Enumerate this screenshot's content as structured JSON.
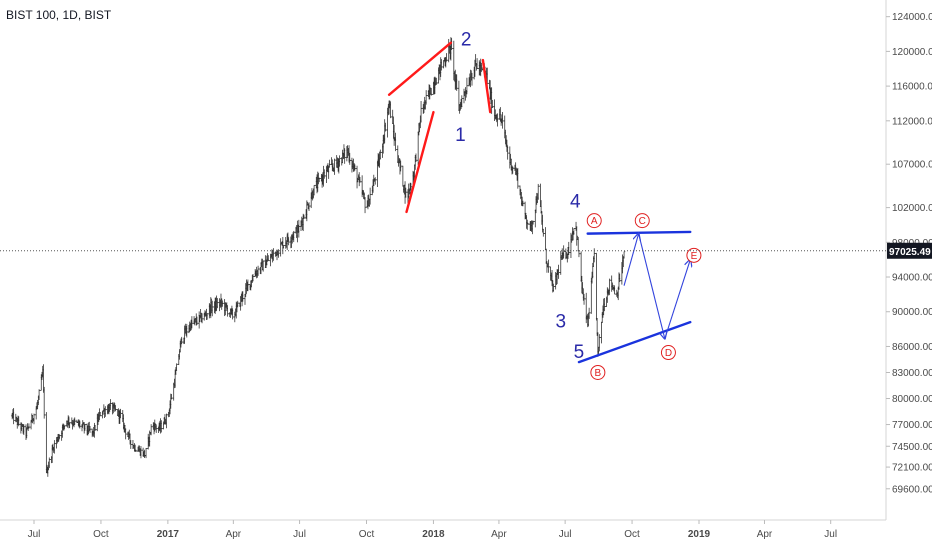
{
  "header": {
    "title": "BIST 100, 1D, BIST"
  },
  "chart_data": {
    "type": "candlestick",
    "title": "BIST 100, 1D, BIST",
    "timeframe": "1D",
    "grid": false,
    "price_axis_position": "right",
    "ylim": [
      67500,
      125000
    ],
    "y_ticks": [
      "124000.00",
      "120000.00",
      "116000.00",
      "112000.00",
      "107000.00",
      "102000.00",
      "98000.00",
      "94000.00",
      "90000.00",
      "86000.00",
      "83000.00",
      "80000.00",
      "77000.00",
      "74500.00",
      "72100.00",
      "69600.00"
    ],
    "x_ticks": [
      "Jul",
      "Oct",
      "2017",
      "Apr",
      "Jul",
      "Oct",
      "2018",
      "Apr",
      "Jul",
      "Oct",
      "2019",
      "Apr",
      "Jul"
    ],
    "last_price": 97025.49,
    "last_price_label": "97025.49",
    "price_path": [
      [
        "2016-06-01",
        78000
      ],
      [
        "2016-06-20",
        76000
      ],
      [
        "2016-07-05",
        79000
      ],
      [
        "2016-07-13",
        83000
      ],
      [
        "2016-07-18",
        71500
      ],
      [
        "2016-07-28",
        74500
      ],
      [
        "2016-08-15",
        77500
      ],
      [
        "2016-09-01",
        77000
      ],
      [
        "2016-09-20",
        76000
      ],
      [
        "2016-10-01",
        78500
      ],
      [
        "2016-10-15",
        79000
      ],
      [
        "2016-10-28",
        78000
      ],
      [
        "2016-11-05",
        76000
      ],
      [
        "2016-11-15",
        74500
      ],
      [
        "2016-12-01",
        73500
      ],
      [
        "2016-12-10",
        77000
      ],
      [
        "2016-12-20",
        76500
      ],
      [
        "2017-01-01",
        78000
      ],
      [
        "2017-01-10",
        82000
      ],
      [
        "2017-01-20",
        87000
      ],
      [
        "2017-02-01",
        88500
      ],
      [
        "2017-02-20",
        89500
      ],
      [
        "2017-03-01",
        90500
      ],
      [
        "2017-03-15",
        91000
      ],
      [
        "2017-04-01",
        89500
      ],
      [
        "2017-04-15",
        92000
      ],
      [
        "2017-05-01",
        94500
      ],
      [
        "2017-05-20",
        96000
      ],
      [
        "2017-06-10",
        98000
      ],
      [
        "2017-06-30",
        99500
      ],
      [
        "2017-07-20",
        104000
      ],
      [
        "2017-08-05",
        106000
      ],
      [
        "2017-08-20",
        107000
      ],
      [
        "2017-09-05",
        108500
      ],
      [
        "2017-09-20",
        105000
      ],
      [
        "2017-10-01",
        102000
      ],
      [
        "2017-10-10",
        104500
      ],
      [
        "2017-10-20",
        108000
      ],
      [
        "2017-11-01",
        114000
      ],
      [
        "2017-11-10",
        109000
      ],
      [
        "2017-11-25",
        103000
      ],
      [
        "2017-12-05",
        106000
      ],
      [
        "2017-12-15",
        113000
      ],
      [
        "2017-12-28",
        115500
      ],
      [
        "2018-01-10",
        118000
      ],
      [
        "2018-01-25",
        120500
      ],
      [
        "2018-02-05",
        113500
      ],
      [
        "2018-02-20",
        117000
      ],
      [
        "2018-03-01",
        118500
      ],
      [
        "2018-03-15",
        117000
      ],
      [
        "2018-03-25",
        113000
      ],
      [
        "2018-04-05",
        112000
      ],
      [
        "2018-04-15",
        107500
      ],
      [
        "2018-04-25",
        106000
      ],
      [
        "2018-05-05",
        101500
      ],
      [
        "2018-05-15",
        99500
      ],
      [
        "2018-05-25",
        104000
      ],
      [
        "2018-06-05",
        96000
      ],
      [
        "2018-06-15",
        92500
      ],
      [
        "2018-06-25",
        96000
      ],
      [
        "2018-07-05",
        97000
      ],
      [
        "2018-07-15",
        100500
      ],
      [
        "2018-07-25",
        92000
      ],
      [
        "2018-08-01",
        88500
      ],
      [
        "2018-08-10",
        96500
      ],
      [
        "2018-08-15",
        85000
      ],
      [
        "2018-08-22",
        90500
      ],
      [
        "2018-09-01",
        93500
      ],
      [
        "2018-09-10",
        92000
      ],
      [
        "2018-09-20",
        96500
      ]
    ],
    "trendlines": [
      {
        "color": "#ff1a1a",
        "points": [
          [
            "2017-11-01",
            115000
          ],
          [
            "2018-01-25",
            121000
          ]
        ]
      },
      {
        "color": "#ff1a1a",
        "points": [
          [
            "2017-11-25",
            101500
          ],
          [
            "2018-01-01",
            113000
          ]
        ]
      },
      {
        "color": "#ff1a1a",
        "points": [
          [
            "2018-03-10",
            119000
          ],
          [
            "2018-03-20",
            113000
          ]
        ]
      },
      {
        "color": "#1a33dd",
        "points": [
          [
            "2018-08-01",
            99000
          ],
          [
            "2018-12-20",
            99200
          ]
        ]
      },
      {
        "color": "#1a33dd",
        "points": [
          [
            "2018-07-20",
            84200
          ],
          [
            "2018-12-20",
            88800
          ]
        ]
      }
    ],
    "projection_path": {
      "color": "#3344dd",
      "points": [
        [
          "2018-09-20",
          93000
        ],
        [
          "2018-10-10",
          99000
        ],
        [
          "2018-11-15",
          86900
        ],
        [
          "2018-12-20",
          96000
        ]
      ]
    },
    "wave_labels": [
      {
        "text": "1",
        "x": "2018-02-07",
        "y": 110500,
        "color": "#2a2aa8",
        "circled": false
      },
      {
        "text": "2",
        "x": "2018-02-15",
        "y": 121500,
        "color": "#2a2aa8",
        "circled": false
      },
      {
        "text": "3",
        "x": "2018-06-25",
        "y": 89000,
        "color": "#2a2aa8",
        "circled": false
      },
      {
        "text": "4",
        "x": "2018-07-15",
        "y": 102800,
        "color": "#2a2aa8",
        "circled": false
      },
      {
        "text": "5",
        "x": "2018-07-20",
        "y": 85500,
        "color": "#2a2aa8",
        "circled": false
      },
      {
        "text": "A",
        "x": "2018-08-10",
        "y": 100500,
        "color": "#e02020",
        "circled": true
      },
      {
        "text": "B",
        "x": "2018-08-15",
        "y": 83000,
        "color": "#e02020",
        "circled": true
      },
      {
        "text": "C",
        "x": "2018-10-15",
        "y": 100500,
        "color": "#e02020",
        "circled": true
      },
      {
        "text": "D",
        "x": "2018-11-20",
        "y": 85300,
        "color": "#e02020",
        "circled": true
      },
      {
        "text": "E",
        "x": "2018-12-25",
        "y": 96500,
        "color": "#e02020",
        "circled": true
      }
    ],
    "colors": {
      "candle_up": "#333333",
      "candle_down": "#333333",
      "axis_text": "#4a4a4a",
      "price_line": "#555555",
      "last_price_box": "#131722",
      "last_price_text": "#ffffff"
    }
  }
}
